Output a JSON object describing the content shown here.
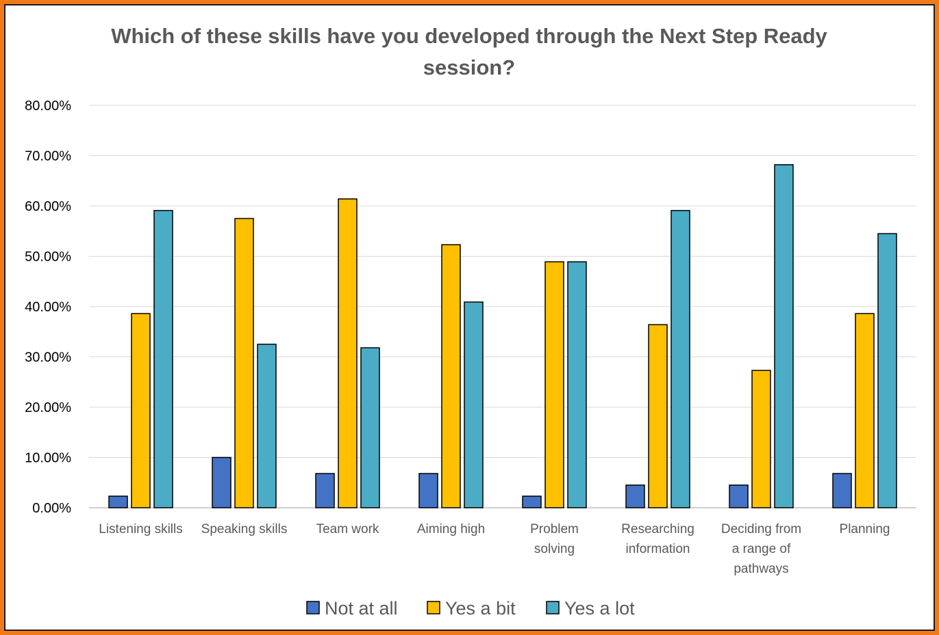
{
  "chart_data": {
    "type": "bar",
    "title": "Which of these skills have you developed through the Next Step Ready session?",
    "categories": [
      "Listening skills",
      "Speaking skills",
      "Team work",
      "Aiming high",
      "Problem solving",
      "Researching information",
      "Deciding from a range of pathways",
      "Planning"
    ],
    "category_lines": [
      [
        "Listening skills"
      ],
      [
        "Speaking skills"
      ],
      [
        "Team work"
      ],
      [
        "Aiming high"
      ],
      [
        "Problem",
        "solving"
      ],
      [
        "Researching",
        "information"
      ],
      [
        "Deciding from",
        "a range of",
        "pathways"
      ],
      [
        "Planning"
      ]
    ],
    "series": [
      {
        "name": "Not at all",
        "color": "#4472c4",
        "values": [
          2.3,
          10.0,
          6.8,
          6.8,
          2.3,
          4.5,
          4.5,
          6.8
        ]
      },
      {
        "name": "Yes a bit",
        "color": "#ffc000",
        "values": [
          38.6,
          57.5,
          61.4,
          52.3,
          48.9,
          36.4,
          27.3,
          38.6
        ]
      },
      {
        "name": "Yes a lot",
        "color": "#4bacc6",
        "values": [
          59.1,
          32.5,
          31.8,
          40.9,
          48.9,
          59.1,
          68.2,
          54.5
        ]
      }
    ],
    "ylim": [
      0,
      80
    ],
    "yticks": [
      "0.00%",
      "10.00%",
      "20.00%",
      "30.00%",
      "40.00%",
      "50.00%",
      "60.00%",
      "70.00%",
      "80.00%"
    ],
    "xlabel": "",
    "ylabel": "",
    "grid": true,
    "legend": "bottom"
  }
}
